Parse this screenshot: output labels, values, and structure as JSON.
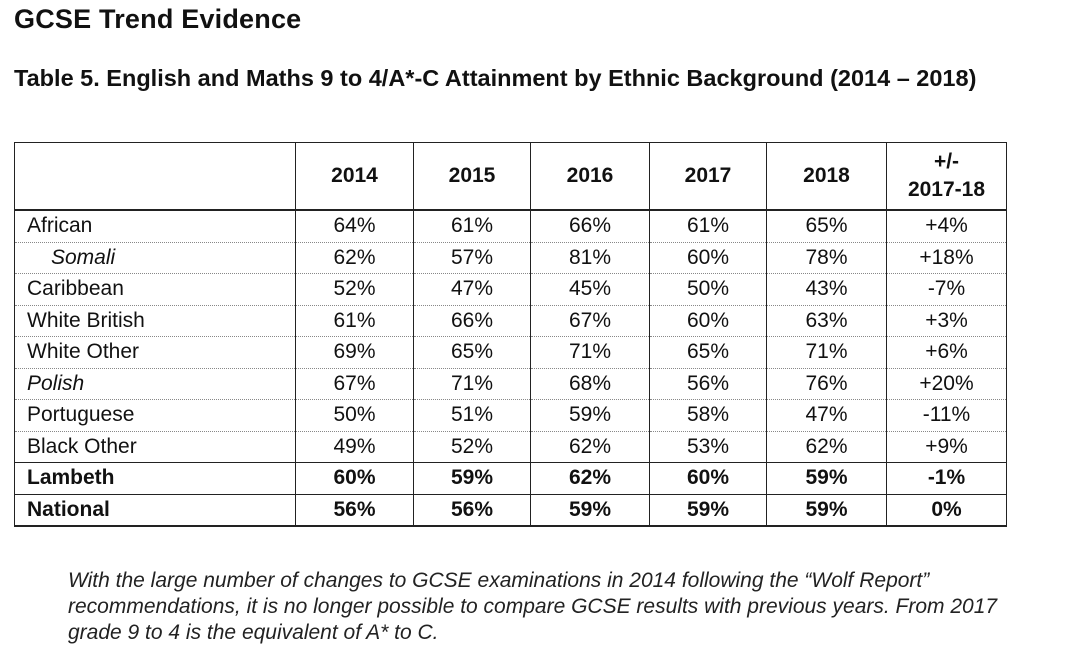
{
  "heading": "GCSE Trend Evidence",
  "caption": "Table 5. English and Maths 9 to 4/A*-C Attainment by Ethnic Background (2014 – 2018)",
  "table": {
    "header": [
      "",
      "2014",
      "2015",
      "2016",
      "2017",
      "2018",
      "+/- 2017-18"
    ],
    "change_header_line1": "+/-",
    "change_header_line2": "2017-18",
    "rows": [
      {
        "name": "African",
        "style": "normal",
        "values": [
          "64%",
          "61%",
          "66%",
          "61%",
          "65%",
          "+4%"
        ]
      },
      {
        "name": "Somali",
        "style": "sub",
        "values": [
          "62%",
          "57%",
          "81%",
          "60%",
          "78%",
          "+18%"
        ]
      },
      {
        "name": "Caribbean",
        "style": "normal",
        "values": [
          "52%",
          "47%",
          "45%",
          "50%",
          "43%",
          "-7%"
        ]
      },
      {
        "name": "White British",
        "style": "normal",
        "values": [
          "61%",
          "66%",
          "67%",
          "60%",
          "63%",
          "+3%"
        ]
      },
      {
        "name": "White Other",
        "style": "normal",
        "values": [
          "69%",
          "65%",
          "71%",
          "65%",
          "71%",
          "+6%"
        ]
      },
      {
        "name": "Polish",
        "style": "ital",
        "values": [
          "67%",
          "71%",
          "68%",
          "56%",
          "76%",
          "+20%"
        ]
      },
      {
        "name": "Portuguese",
        "style": "normal",
        "values": [
          "50%",
          "51%",
          "59%",
          "58%",
          "47%",
          "-11%"
        ]
      },
      {
        "name": "Black Other",
        "style": "normal",
        "values": [
          "49%",
          "52%",
          "62%",
          "53%",
          "62%",
          "+9%"
        ]
      },
      {
        "name": "Lambeth",
        "style": "bold",
        "values": [
          "60%",
          "59%",
          "62%",
          "60%",
          "59%",
          "-1%"
        ]
      },
      {
        "name": "National",
        "style": "bold",
        "values": [
          "56%",
          "56%",
          "59%",
          "59%",
          "59%",
          "0%"
        ]
      }
    ]
  },
  "note": "With the large number of changes to GCSE examinations in 2014 following the “Wolf Report” recommendations, it is no longer possible to compare GCSE results with previous years. From 2017 grade 9 to 4 is the equivalent of A* to C."
}
